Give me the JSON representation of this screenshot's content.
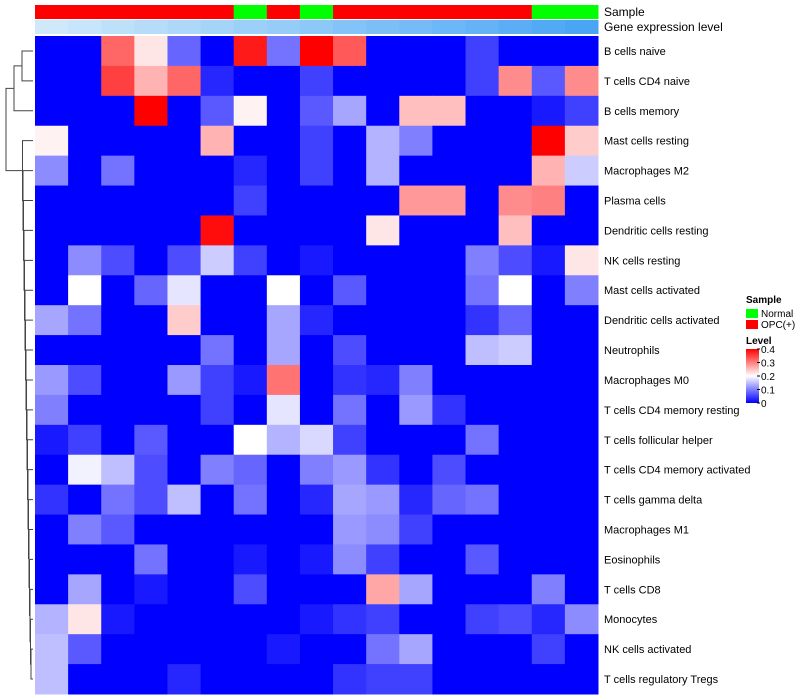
{
  "chart_data": {
    "type": "heatmap",
    "annotations": {
      "sample_label": "Sample",
      "level_label": "Gene expression level",
      "sample_groups": [
        "OPC(+)",
        "OPC(+)",
        "OPC(+)",
        "OPC(+)",
        "OPC(+)",
        "OPC(+)",
        "Normal",
        "OPC(+)",
        "Normal",
        "OPC(+)",
        "OPC(+)",
        "OPC(+)",
        "OPC(+)",
        "OPC(+)",
        "OPC(+)",
        "Normal",
        "Normal"
      ]
    },
    "rows": [
      "B cells naive",
      "T cells CD4 naive",
      "B cells memory",
      "Mast cells resting",
      "Macrophages M2",
      "Plasma cells",
      "Dendritic cells resting",
      "NK cells resting",
      "Mast cells activated",
      "Dendritic cells activated",
      "Neutrophils",
      "Macrophages M0",
      "T cells CD4 memory resting",
      "T cells follicular helper",
      "T cells CD4 memory activated",
      "T cells gamma delta",
      "Macrophages M1",
      "Eosinophils",
      "T cells CD8",
      "Monocytes",
      "NK cells activated",
      "T cells regulatory  Tregs"
    ],
    "values": [
      [
        0.0,
        0.0,
        0.32,
        0.22,
        0.08,
        0.0,
        0.38,
        0.09,
        0.4,
        0.33,
        0.0,
        0.0,
        0.0,
        0.05,
        0.0,
        0.0,
        0.0
      ],
      [
        0.0,
        0.0,
        0.35,
        0.26,
        0.32,
        0.03,
        0.0,
        0.0,
        0.05,
        0.0,
        0.0,
        0.0,
        0.0,
        0.05,
        0.29,
        0.07,
        0.29
      ],
      [
        0.0,
        0.0,
        0.0,
        0.4,
        0.0,
        0.07,
        0.21,
        0.0,
        0.07,
        0.13,
        0.0,
        0.25,
        0.25,
        0.0,
        0.0,
        0.02,
        0.05
      ],
      [
        0.21,
        0.0,
        0.0,
        0.0,
        0.0,
        0.26,
        0.0,
        0.0,
        0.05,
        0.0,
        0.14,
        0.1,
        0.0,
        0.0,
        0.0,
        0.4,
        0.24
      ],
      [
        0.11,
        0.0,
        0.09,
        0.0,
        0.0,
        0.0,
        0.03,
        0.0,
        0.05,
        0.0,
        0.14,
        0.0,
        0.0,
        0.0,
        0.0,
        0.26,
        0.16
      ],
      [
        0.0,
        0.0,
        0.0,
        0.0,
        0.0,
        0.0,
        0.05,
        0.0,
        0.0,
        0.0,
        0.0,
        0.28,
        0.28,
        0.0,
        0.29,
        0.3,
        0.0
      ],
      [
        0.0,
        0.0,
        0.0,
        0.0,
        0.0,
        0.39,
        0.0,
        0.0,
        0.0,
        0.0,
        0.22,
        0.0,
        0.0,
        0.0,
        0.25,
        0.0,
        0.0
      ],
      [
        0.0,
        0.11,
        0.06,
        0.0,
        0.06,
        0.16,
        0.05,
        0.0,
        0.02,
        0.0,
        0.0,
        0.0,
        0.0,
        0.1,
        0.06,
        0.02,
        0.22
      ],
      [
        0.0,
        0.2,
        0.0,
        0.08,
        0.18,
        0.0,
        0.0,
        0.2,
        0.0,
        0.07,
        0.0,
        0.0,
        0.0,
        0.09,
        0.2,
        0.0,
        0.1
      ],
      [
        0.13,
        0.09,
        0.0,
        0.0,
        0.24,
        0.0,
        0.0,
        0.13,
        0.03,
        0.0,
        0.0,
        0.0,
        0.0,
        0.04,
        0.08,
        0.0,
        0.0
      ],
      [
        0.0,
        0.0,
        0.0,
        0.0,
        0.0,
        0.09,
        0.0,
        0.13,
        0.0,
        0.06,
        0.0,
        0.0,
        0.0,
        0.15,
        0.16,
        0.0,
        0.0
      ],
      [
        0.12,
        0.06,
        0.0,
        0.0,
        0.12,
        0.05,
        0.02,
        0.31,
        0.0,
        0.04,
        0.03,
        0.1,
        0.0,
        0.0,
        0.0,
        0.0,
        0.0
      ],
      [
        0.1,
        0.0,
        0.0,
        0.0,
        0.0,
        0.05,
        0.0,
        0.18,
        0.0,
        0.09,
        0.0,
        0.12,
        0.04,
        0.0,
        0.0,
        0.0,
        0.0
      ],
      [
        0.02,
        0.05,
        0.0,
        0.07,
        0.0,
        0.0,
        0.2,
        0.14,
        0.17,
        0.05,
        0.0,
        0.0,
        0.0,
        0.09,
        0.0,
        0.0,
        0.0
      ],
      [
        0.0,
        0.19,
        0.15,
        0.06,
        0.0,
        0.1,
        0.08,
        0.0,
        0.1,
        0.12,
        0.04,
        0.0,
        0.06,
        0.0,
        0.0,
        0.0,
        0.0
      ],
      [
        0.04,
        0.0,
        0.09,
        0.06,
        0.15,
        0.0,
        0.09,
        0.0,
        0.03,
        0.13,
        0.12,
        0.03,
        0.08,
        0.09,
        0.0,
        0.0,
        0.0
      ],
      [
        0.0,
        0.1,
        0.07,
        0.0,
        0.0,
        0.0,
        0.0,
        0.0,
        0.0,
        0.12,
        0.11,
        0.05,
        0.0,
        0.0,
        0.0,
        0.0,
        0.0
      ],
      [
        0.0,
        0.0,
        0.0,
        0.09,
        0.0,
        0.0,
        0.02,
        0.0,
        0.02,
        0.11,
        0.05,
        0.0,
        0.0,
        0.07,
        0.0,
        0.0,
        0.0
      ],
      [
        0.0,
        0.13,
        0.0,
        0.02,
        0.0,
        0.0,
        0.06,
        0.0,
        0.0,
        0.0,
        0.27,
        0.13,
        0.0,
        0.0,
        0.0,
        0.1,
        0.0
      ],
      [
        0.14,
        0.22,
        0.02,
        0.0,
        0.0,
        0.0,
        0.0,
        0.0,
        0.02,
        0.04,
        0.05,
        0.0,
        0.0,
        0.05,
        0.06,
        0.03,
        0.11
      ],
      [
        0.15,
        0.07,
        0.0,
        0.0,
        0.0,
        0.0,
        0.0,
        0.02,
        0.0,
        0.0,
        0.09,
        0.13,
        0.0,
        0.0,
        0.0,
        0.05,
        0.0
      ],
      [
        0.15,
        0.0,
        0.0,
        0.0,
        0.03,
        0.0,
        0.0,
        0.0,
        0.0,
        0.04,
        0.05,
        0.05,
        0.0,
        0.0,
        0.0,
        0.0,
        0.0
      ]
    ],
    "legend": {
      "sample_title": "Sample",
      "sample_entries": [
        {
          "name": "Normal",
          "color": "#00ff00"
        },
        {
          "name": "OPC(+)",
          "color": "#ff0000"
        }
      ],
      "level_title": "Level",
      "level_ticks": [
        0.4,
        0.3,
        0.2,
        0.1,
        0
      ],
      "range": [
        0,
        0.4
      ]
    },
    "colors": {
      "low": "#0000ff",
      "mid": "#ffffff",
      "high": "#ff0000",
      "annotation_level_light": "#cfe9fb",
      "annotation_level_dark": "#4aa6f5"
    }
  }
}
